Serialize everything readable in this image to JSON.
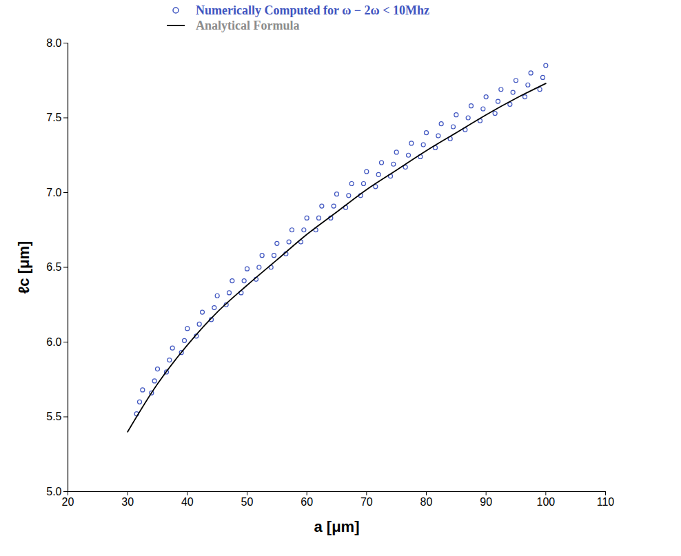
{
  "chart_data": {
    "type": "scatter",
    "x_label": "a [μm]",
    "y_label": "ℓc [μm]",
    "xlim": [
      20,
      110
    ],
    "xticks": [
      20,
      30,
      40,
      50,
      60,
      70,
      80,
      90,
      100,
      110
    ],
    "ylim": [
      5.0,
      8.0
    ],
    "yticks": [
      {
        "value": 5.0,
        "label": "5.0"
      },
      5.5,
      {
        "value": 6.0,
        "label": "6.0"
      },
      6.5,
      {
        "value": 7.0,
        "label": "7.0"
      },
      7.5,
      {
        "value": 8.0,
        "label": "8.0"
      }
    ],
    "grid": false,
    "legend": "top",
    "series": [
      {
        "name": "Numerically Computed for ω − 2ω < 10Mhz",
        "type": "scatter",
        "marker": "circle",
        "color": "#3f55c0",
        "x": [
          31.5,
          32,
          32.5,
          34,
          34.5,
          35,
          36.5,
          37,
          37.5,
          39,
          39.5,
          40,
          41.5,
          42,
          42.5,
          44,
          44.5,
          45,
          46.5,
          47,
          47.5,
          49,
          49.5,
          50,
          51.5,
          52,
          52.5,
          54,
          54.5,
          55,
          56.5,
          57,
          57.5,
          59,
          59.5,
          60,
          61.5,
          62,
          62.5,
          64,
          64.5,
          65,
          66.5,
          67,
          67.5,
          69,
          69.5,
          70,
          71.5,
          72,
          72.5,
          74,
          74.5,
          75,
          76.5,
          77,
          77.5,
          79,
          79.5,
          80,
          81.5,
          82,
          82.5,
          84,
          84.5,
          85,
          86.5,
          87,
          87.5,
          89,
          89.5,
          90,
          91.5,
          92,
          92.5,
          94,
          94.5,
          95,
          96.5,
          97,
          97.5,
          99,
          99.5,
          100
        ],
        "values": [
          5.52,
          5.6,
          5.68,
          5.66,
          5.74,
          5.82,
          5.8,
          5.88,
          5.96,
          5.93,
          6.01,
          6.09,
          6.04,
          6.12,
          6.2,
          6.15,
          6.23,
          6.31,
          6.25,
          6.33,
          6.41,
          6.33,
          6.41,
          6.49,
          6.42,
          6.5,
          6.58,
          6.5,
          6.58,
          6.66,
          6.59,
          6.67,
          6.75,
          6.67,
          6.75,
          6.83,
          6.75,
          6.83,
          6.91,
          6.83,
          6.91,
          6.99,
          6.9,
          6.98,
          7.06,
          6.98,
          7.06,
          7.14,
          7.04,
          7.12,
          7.2,
          7.11,
          7.19,
          7.27,
          7.17,
          7.25,
          7.33,
          7.24,
          7.32,
          7.4,
          7.3,
          7.38,
          7.46,
          7.36,
          7.44,
          7.52,
          7.42,
          7.5,
          7.58,
          7.48,
          7.56,
          7.64,
          7.53,
          7.61,
          7.69,
          7.59,
          7.67,
          7.75,
          7.64,
          7.72,
          7.8,
          7.69,
          7.77,
          7.85
        ]
      },
      {
        "name": "Analytical Formula",
        "type": "line",
        "line_style": "solid",
        "color": "#000000",
        "x": [
          30,
          35,
          40,
          45,
          50,
          55,
          60,
          65,
          70,
          75,
          80,
          85,
          90,
          95,
          100
        ],
        "values": [
          5.4,
          5.72,
          5.98,
          6.2,
          6.38,
          6.55,
          6.72,
          6.87,
          7.02,
          7.15,
          7.28,
          7.4,
          7.52,
          7.63,
          7.73
        ]
      }
    ]
  }
}
